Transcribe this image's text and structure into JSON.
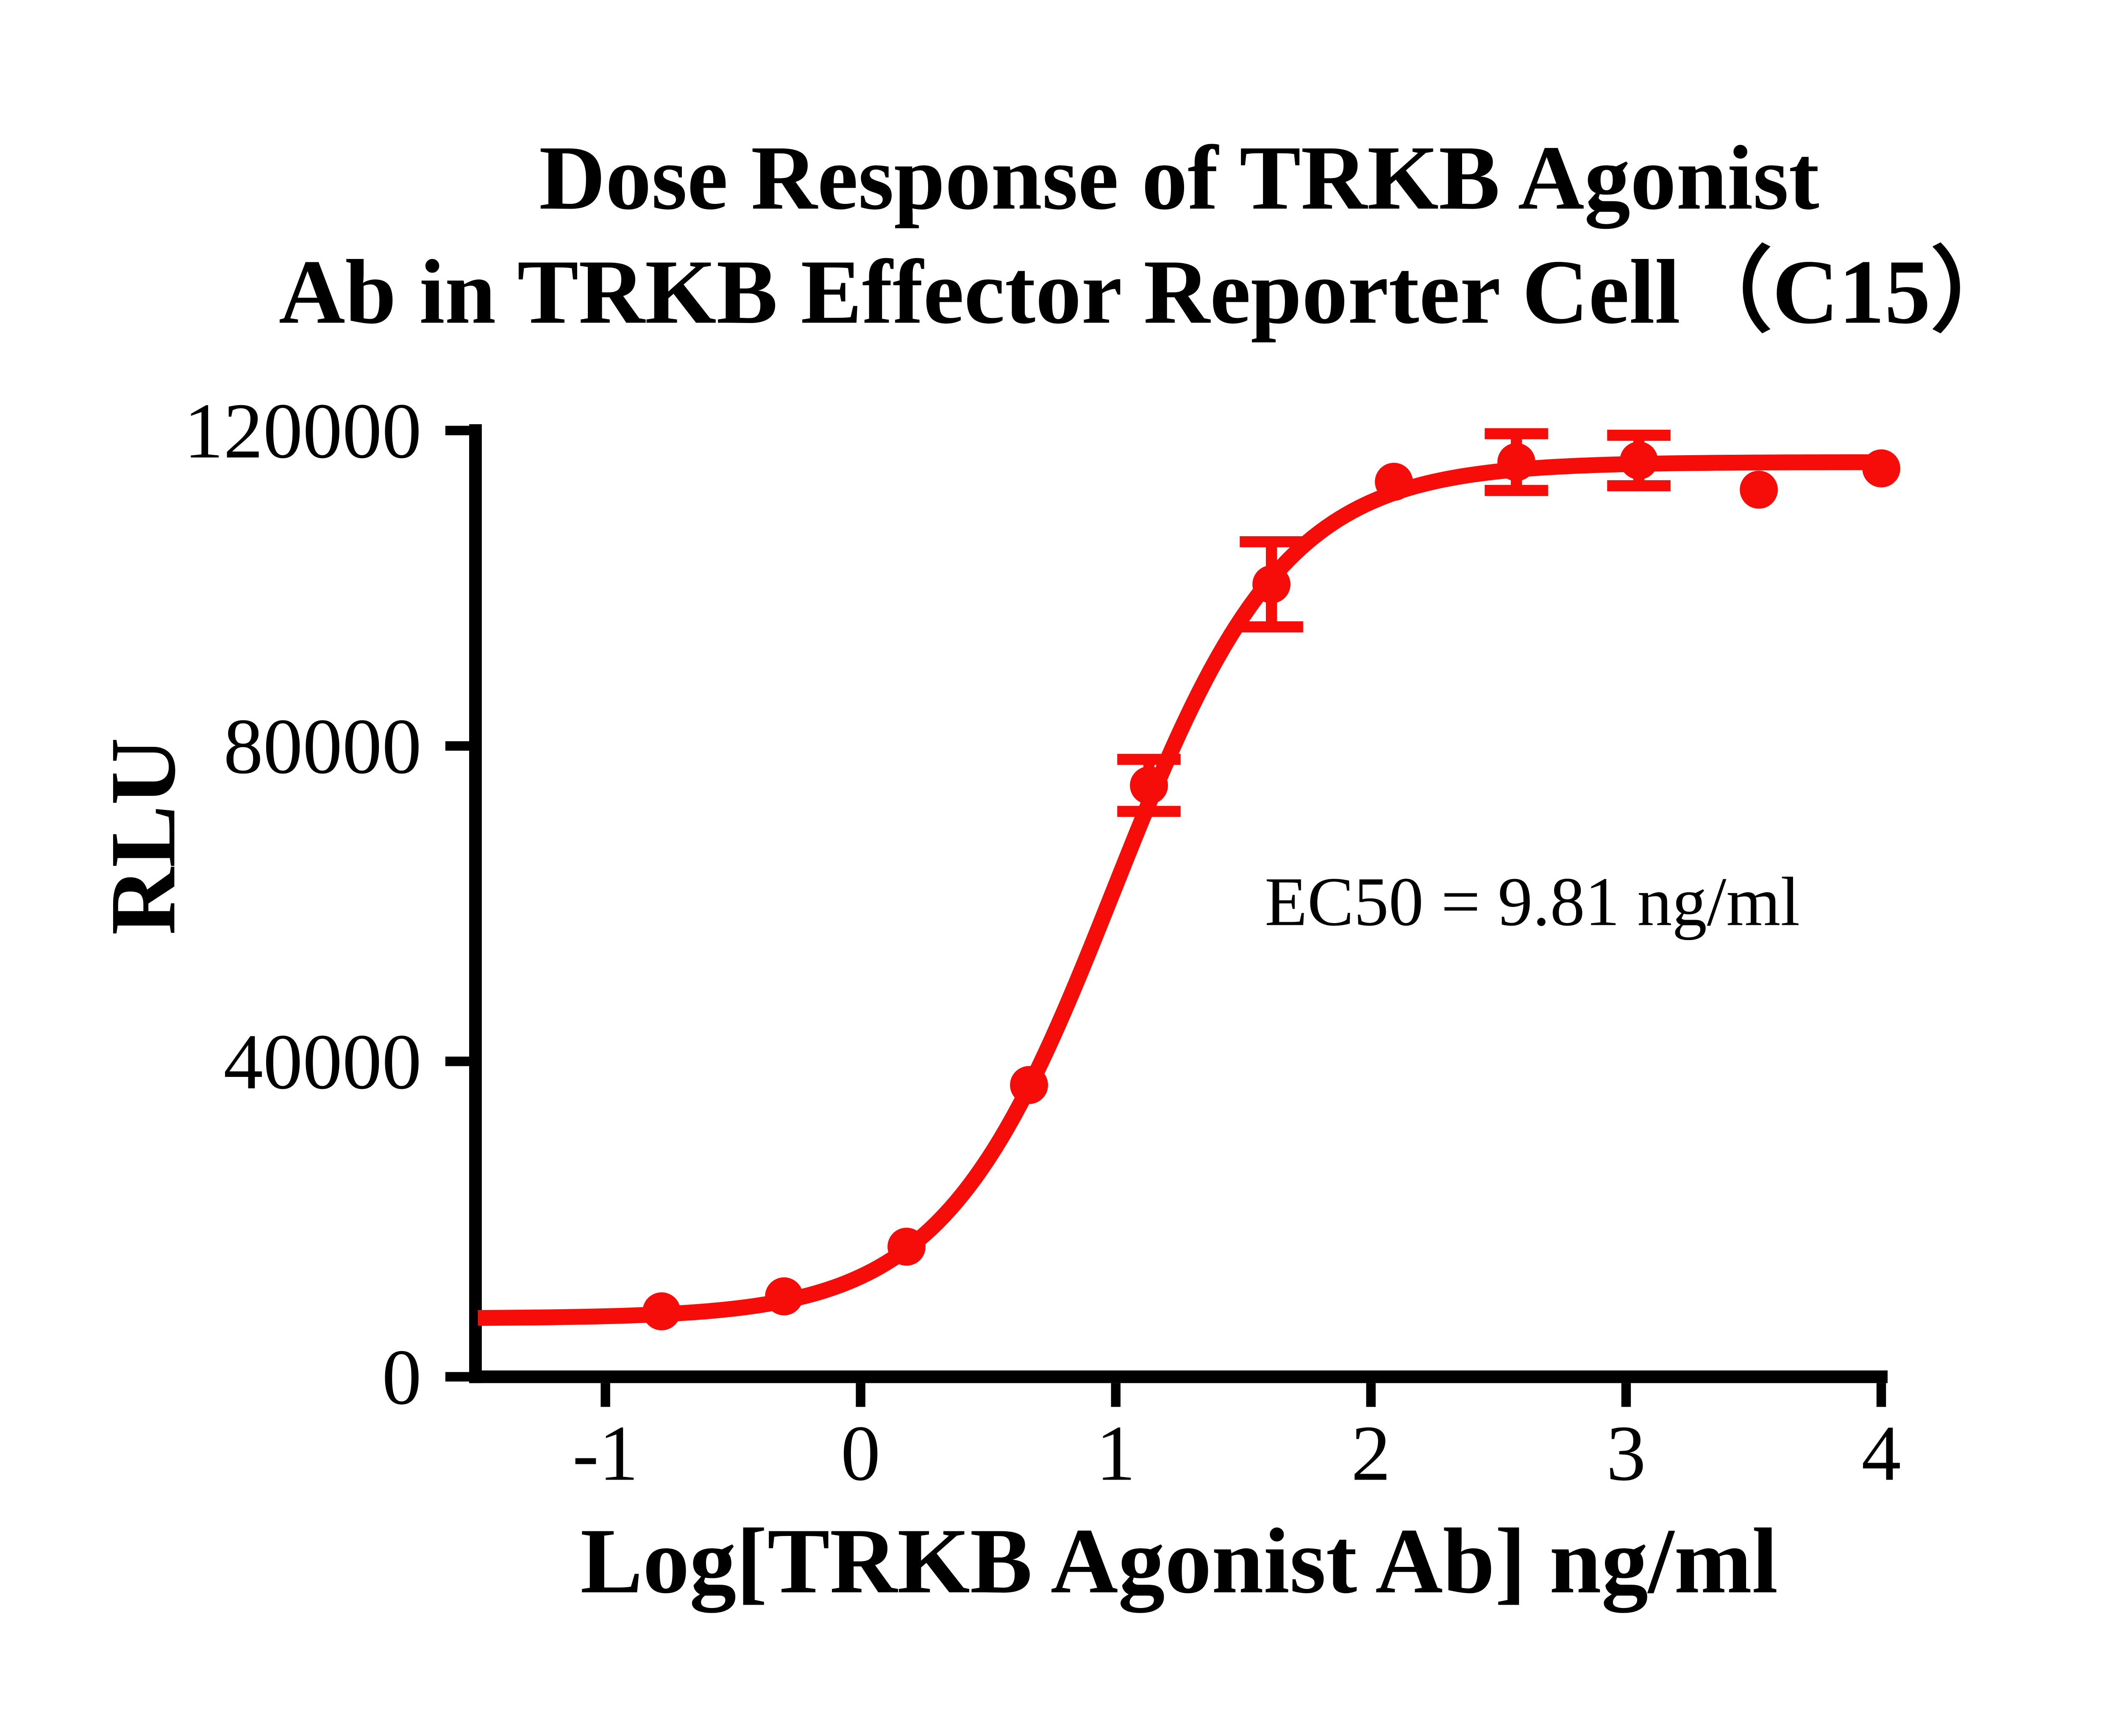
{
  "title": {
    "line1": "Dose Response of TRKB Agonist",
    "line2": "Ab in TRKB Effector Reporter Cell（C15）"
  },
  "axes": {
    "x_label": "Log[TRKB Agonist Ab] ng/ml",
    "y_label": "RLU",
    "x_tick_labels": [
      "-1",
      "0",
      "1",
      "2",
      "3",
      "4"
    ],
    "x_tick_values": [
      -1,
      0,
      1,
      2,
      3,
      4
    ],
    "y_tick_labels": [
      "0",
      "40000",
      "80000",
      "120000"
    ],
    "y_tick_values": [
      0,
      40000,
      80000,
      120000
    ],
    "x_min": -1.5,
    "x_max": 4.0,
    "y_min": 0,
    "y_max": 120000
  },
  "annotation": {
    "ec50": "EC50 = 9.81 ng/ml"
  },
  "style": {
    "curve_color": "#f60d0a",
    "axis_color": "#000000",
    "text_color": "#000000",
    "background": "#ffffff"
  },
  "chart_data": {
    "type": "line",
    "title": "Dose Response of TRKB Agonist Ab in TRKB Effector Reporter Cell（C15）",
    "xlabel": "Log[TRKB Agonist Ab] ng/ml",
    "ylabel": "RLU",
    "xlim": [
      -1.5,
      4.0
    ],
    "ylim": [
      0,
      120000
    ],
    "grid": false,
    "legend": "none",
    "annotation": "EC50 = 9.81 ng/ml",
    "series": [
      {
        "name": "TRKB Agonist Ab",
        "marker": "circle",
        "color": "#f60d0a",
        "x_log": [
          -0.78,
          -0.3,
          0.18,
          0.66,
          1.13,
          1.61,
          2.09,
          2.57,
          3.05,
          3.52,
          4.0
        ],
        "y_rlu": [
          8300,
          10200,
          16500,
          37000,
          75000,
          100500,
          113500,
          116000,
          116200,
          112500,
          115200
        ],
        "y_err": [
          0,
          0,
          0,
          0,
          3300,
          5400,
          0,
          3600,
          3200,
          0,
          0
        ]
      }
    ],
    "fit_curve": {
      "model": "four_parameter_logistic",
      "bottom": 7400,
      "top": 116000,
      "log_ec50": 0.992,
      "hill_slope": 1.3,
      "ec50_ng_ml": 9.81
    }
  }
}
